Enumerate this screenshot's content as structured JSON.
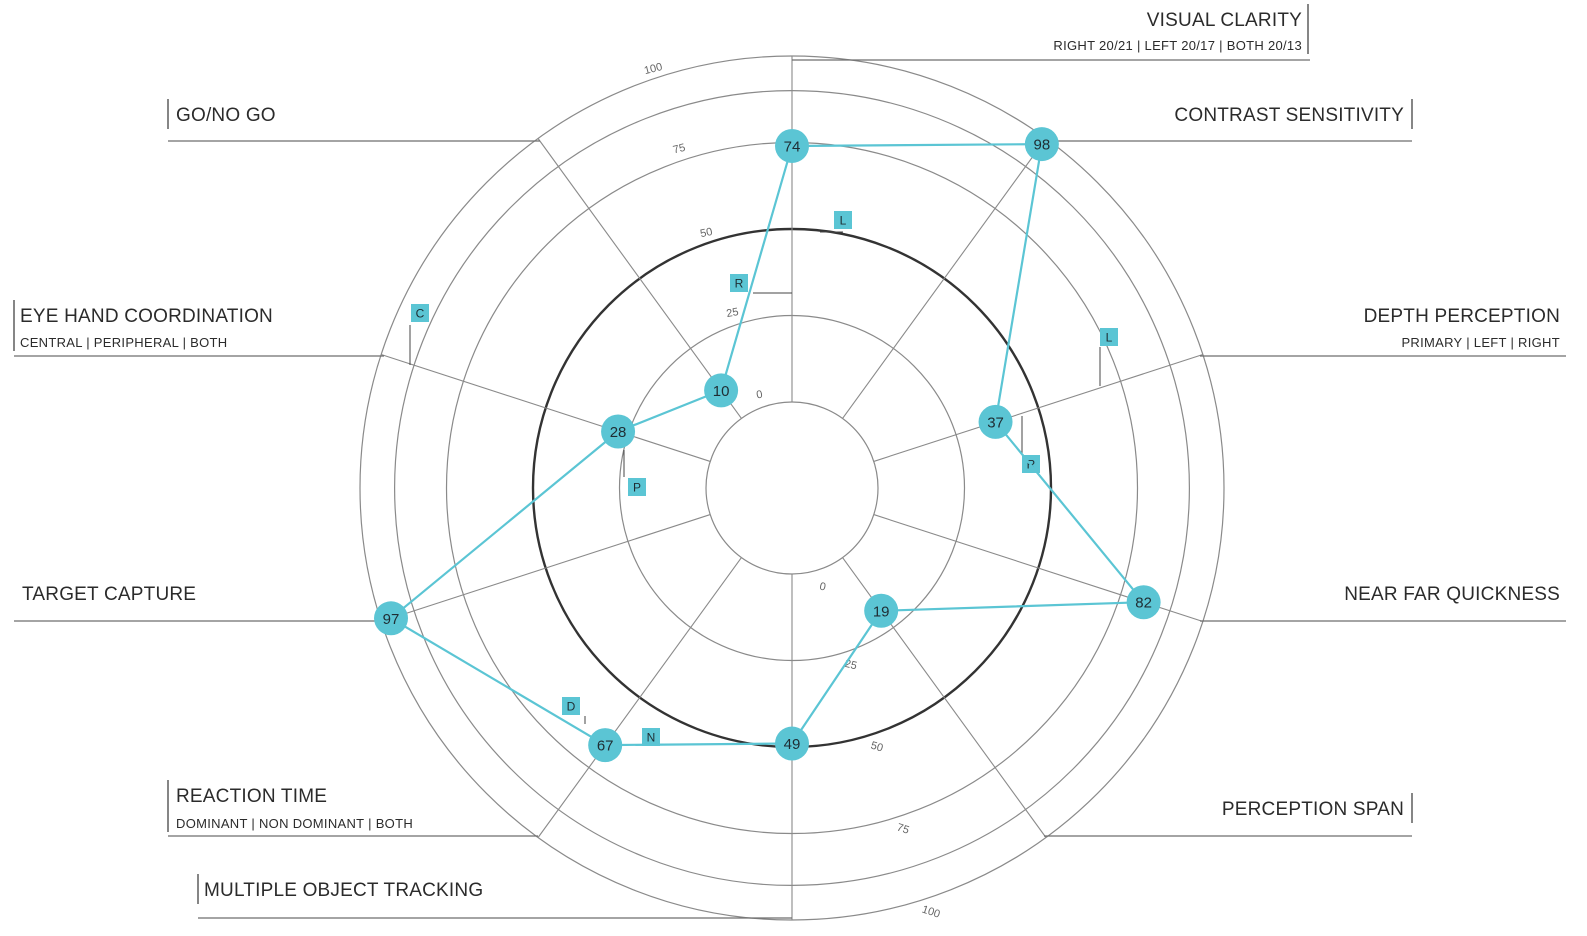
{
  "chart_data": {
    "type": "radar",
    "rlim": [
      0,
      100
    ],
    "rings": [
      {
        "value": 0,
        "label": "0"
      },
      {
        "value": 25,
        "label": "25"
      },
      {
        "value": 50,
        "label": "50"
      },
      {
        "value": 75,
        "label": "75"
      },
      {
        "value": 100,
        "label": "100"
      }
    ],
    "highlight_ring": 50,
    "categories": [
      {
        "name": "VISUAL CLARITY",
        "sub": "RIGHT 20/21 | LEFT 20/17 | BOTH 20/13",
        "value": 74,
        "side": "right"
      },
      {
        "name": "CONTRAST SENSITIVITY",
        "sub": "",
        "value": 98,
        "side": "right"
      },
      {
        "name": "DEPTH PERCEPTION",
        "sub": "PRIMARY | LEFT | RIGHT",
        "value": 37,
        "side": "right"
      },
      {
        "name": "NEAR FAR QUICKNESS",
        "sub": "",
        "value": 82,
        "side": "right"
      },
      {
        "name": "PERCEPTION SPAN",
        "sub": "",
        "value": 19,
        "side": "right"
      },
      {
        "name": "MULTIPLE OBJECT TRACKING",
        "sub": "",
        "value": 49,
        "side": "left"
      },
      {
        "name": "REACTION TIME",
        "sub": "DOMINANT | NON DOMINANT |  BOTH",
        "value": 67,
        "side": "left"
      },
      {
        "name": "TARGET CAPTURE",
        "sub": "",
        "value": 97,
        "side": "left"
      },
      {
        "name": "EYE HAND COORDINATION",
        "sub": "CENTRAL | PERIPHERAL | BOTH",
        "value": 28,
        "side": "left"
      },
      {
        "name": "GO/NO GO",
        "sub": "",
        "value": 10,
        "side": "left"
      }
    ],
    "markers": [
      "L",
      "R",
      "L",
      "R",
      "C",
      "P",
      "D",
      "N"
    ],
    "colors": {
      "series": "#5bc5d4",
      "marker_fill": "#5bc5d4",
      "grid": "#8a8a8a",
      "highlight_ring": "#333333",
      "text": "#2b2b2b"
    }
  }
}
